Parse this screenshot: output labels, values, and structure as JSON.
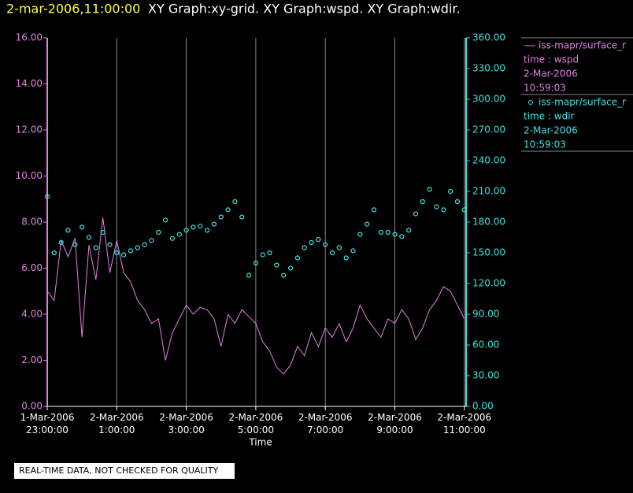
{
  "chart_data": {
    "type": "xy",
    "timestamp": "2-mar-2006,11:00:00",
    "title": "XY Graph:xy-grid.  XY Graph:wspd.  XY Graph:wdir.",
    "xlabel": "Time",
    "footnote": "REAL-TIME DATA, NOT CHECKED FOR QUALITY",
    "grid": true,
    "xlim": [
      23,
      35.05
    ],
    "xticks": [
      {
        "value": 23,
        "label": [
          "1-Mar-2006",
          "23:00:00"
        ]
      },
      {
        "value": 25,
        "label": [
          "2-Mar-2006",
          "1:00:00"
        ]
      },
      {
        "value": 27,
        "label": [
          "2-Mar-2006",
          "3:00:00"
        ]
      },
      {
        "value": 29,
        "label": [
          "2-Mar-2006",
          "5:00:00"
        ]
      },
      {
        "value": 31,
        "label": [
          "2-Mar-2006",
          "7:00:00"
        ]
      },
      {
        "value": 33,
        "label": [
          "2-Mar-2006",
          "9:00:00"
        ]
      },
      {
        "value": 35,
        "label": [
          "2-Mar-2006",
          "11:00:00"
        ]
      }
    ],
    "ylim": [
      0,
      16
    ],
    "yticks": [
      {
        "value": 0,
        "label": "0.00"
      },
      {
        "value": 2,
        "label": "2.00"
      },
      {
        "value": 4,
        "label": "4.00"
      },
      {
        "value": 6,
        "label": "6.00"
      },
      {
        "value": 8,
        "label": "8.00"
      },
      {
        "value": 10,
        "label": "10.00"
      },
      {
        "value": 12,
        "label": "12.00"
      },
      {
        "value": 14,
        "label": "14.00"
      },
      {
        "value": 16,
        "label": "16.00"
      }
    ],
    "y2lim": [
      0,
      360
    ],
    "y2ticks": [
      {
        "value": 0,
        "label": "0.00"
      },
      {
        "value": 30,
        "label": "30.00"
      },
      {
        "value": 60,
        "label": "60.00"
      },
      {
        "value": 90,
        "label": "90.00"
      },
      {
        "value": 120,
        "label": "120.00"
      },
      {
        "value": 150,
        "label": "150.00"
      },
      {
        "value": 180,
        "label": "180.00"
      },
      {
        "value": 210,
        "label": "210.00"
      },
      {
        "value": 240,
        "label": "240.00"
      },
      {
        "value": 270,
        "label": "270.00"
      },
      {
        "value": 300,
        "label": "300.00"
      },
      {
        "value": 330,
        "label": "330.00"
      },
      {
        "value": 360,
        "label": "360.00"
      }
    ],
    "x": [
      23.0,
      23.2,
      23.4,
      23.6,
      23.8,
      24.0,
      24.2,
      24.4,
      24.6,
      24.8,
      25.0,
      25.2,
      25.4,
      25.6,
      25.8,
      26.0,
      26.2,
      26.4,
      26.6,
      26.8,
      27.0,
      27.2,
      27.4,
      27.6,
      27.8,
      28.0,
      28.2,
      28.4,
      28.6,
      28.8,
      29.0,
      29.2,
      29.4,
      29.6,
      29.8,
      30.0,
      30.2,
      30.4,
      30.6,
      30.8,
      31.0,
      31.2,
      31.4,
      31.6,
      31.8,
      32.0,
      32.2,
      32.4,
      32.6,
      32.8,
      33.0,
      33.2,
      33.4,
      33.6,
      33.8,
      34.0,
      34.2,
      34.4,
      34.6,
      34.8,
      35.0
    ],
    "series": [
      {
        "name": "iss-mapr/surface_r",
        "label": "time : wspd",
        "date": "2-Mar-2006",
        "time": "10:59:03",
        "color": "#e080e0",
        "style": "line",
        "values": [
          5.0,
          4.6,
          7.2,
          6.5,
          7.3,
          3.0,
          7.0,
          5.5,
          8.2,
          5.8,
          7.2,
          5.8,
          5.4,
          4.6,
          4.2,
          3.6,
          3.8,
          2.0,
          3.2,
          3.8,
          4.4,
          4.0,
          4.3,
          4.2,
          3.8,
          2.6,
          4.0,
          3.6,
          4.2,
          3.9,
          3.6,
          2.8,
          2.4,
          1.7,
          1.4,
          1.8,
          2.6,
          2.2,
          3.2,
          2.6,
          3.4,
          3.0,
          3.6,
          2.8,
          3.4,
          4.4,
          3.8,
          3.4,
          3.0,
          3.8,
          3.6,
          4.2,
          3.8,
          2.9,
          3.4,
          4.2,
          4.6,
          5.2,
          5.0,
          4.4,
          3.8
        ]
      },
      {
        "name": "iss-mapr/surface_r",
        "label": "time : wdir",
        "date": "2-Mar-2006",
        "time": "10:59:03",
        "color": "#40e0e0",
        "style": "markers",
        "axis": "y2",
        "values": [
          205,
          150,
          160,
          172,
          158,
          175,
          165,
          155,
          170,
          158,
          150,
          148,
          152,
          155,
          158,
          162,
          170,
          182,
          164,
          168,
          172,
          175,
          176,
          172,
          178,
          185,
          192,
          200,
          185,
          128,
          140,
          148,
          150,
          138,
          128,
          135,
          145,
          155,
          160,
          163,
          158,
          150,
          155,
          145,
          152,
          168,
          178,
          192,
          170,
          170,
          168,
          166,
          172,
          188,
          200,
          212,
          195,
          192,
          210,
          200,
          192
        ]
      }
    ]
  }
}
